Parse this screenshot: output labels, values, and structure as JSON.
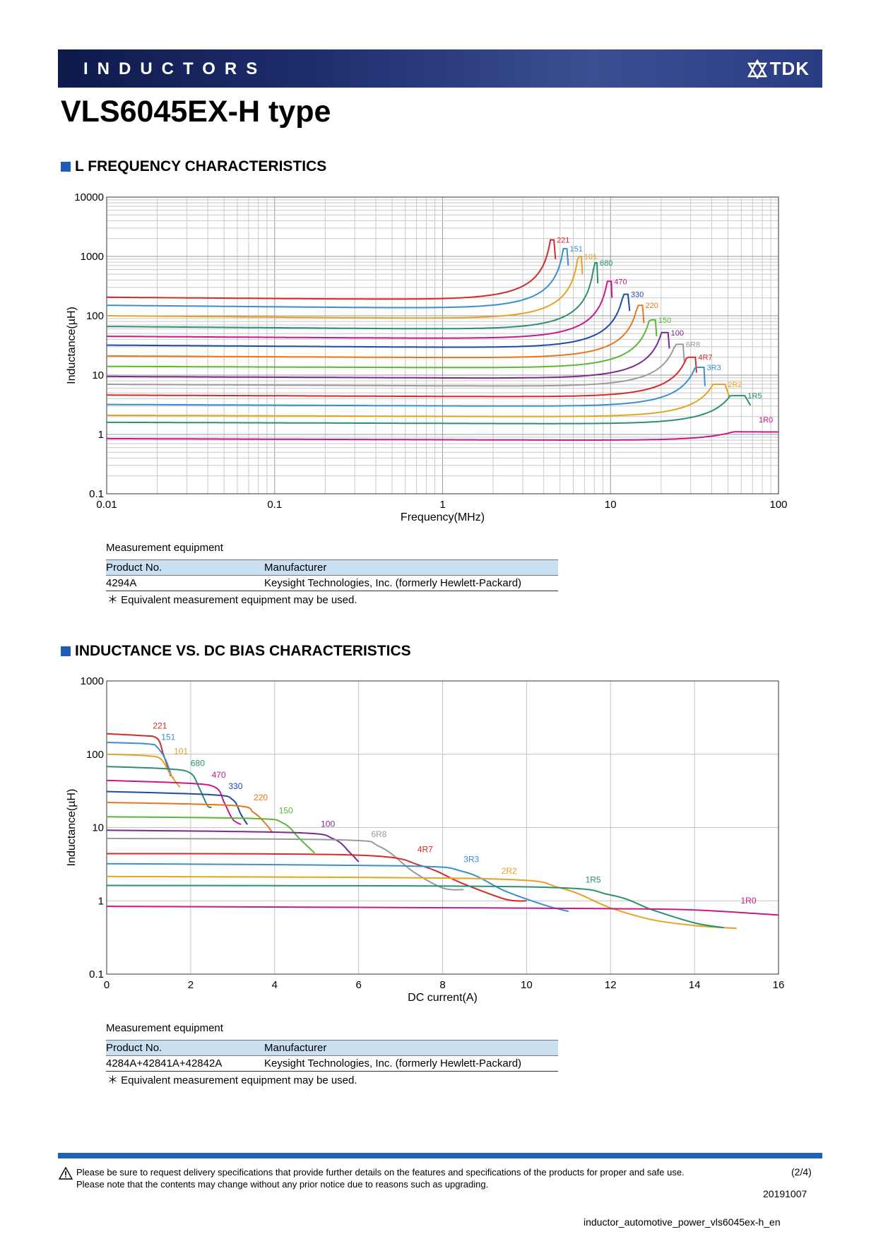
{
  "header": {
    "category": "INDUCTORS",
    "logo_text": "TDK"
  },
  "page_title": "VLS6045EX-H type",
  "section1": {
    "title": "L FREQUENCY CHARACTERISTICS",
    "equipment_label": "Measurement equipment",
    "table_headers": [
      "Product No.",
      "Manufacturer"
    ],
    "table_rows": [
      [
        "4294A",
        "Keysight Technologies, Inc. (formerly Hewlett-Packard)"
      ]
    ],
    "note": "＊ Equivalent measurement equipment may be used."
  },
  "section2": {
    "title": "INDUCTANCE VS. DC BIAS CHARACTERISTICS",
    "equipment_label": "Measurement equipment",
    "table_headers": [
      "Product No.",
      "Manufacturer"
    ],
    "table_rows": [
      [
        "4284A+42841A+42842A",
        "Keysight Technologies, Inc. (formerly Hewlett-Packard)"
      ]
    ],
    "note": "＊ Equivalent measurement equipment may be used."
  },
  "footer": {
    "line1": "Please be sure to request delivery specifications that provide further details on the features and specifications of the products for proper and safe use.",
    "line2": "Please note that the contents may change without any prior notice due to reasons such as upgrading.",
    "page": "(2/4)",
    "date": "20191007",
    "filename": "inductor_automotive_power_vls6045ex-h_en"
  },
  "chart_data": [
    {
      "type": "line",
      "xscale": "log",
      "yscale": "log",
      "xlim": [
        0.01,
        100
      ],
      "ylim": [
        0.1,
        10000
      ],
      "xticks": [
        "0.01",
        "0.1",
        "1",
        "10",
        "100"
      ],
      "yticks": [
        "0.1",
        "1",
        "10",
        "100",
        "1000",
        "10000"
      ],
      "xlabel": "Frequency(MHz)",
      "ylabel": "Inductance(µH)",
      "grid": true,
      "series": [
        {
          "name": "221",
          "color": "#d42a2a",
          "L0": 205,
          "L1min": 180,
          "fpk": 4.6,
          "Lpk": 1900,
          "fend": 4.7,
          "Lend": 900
        },
        {
          "name": "151",
          "color": "#3a8fd0",
          "L0": 150,
          "L1min": 128,
          "fpk": 5.5,
          "Lpk": 1350,
          "fend": 5.6,
          "Lend": 700
        },
        {
          "name": "101",
          "color": "#e6a31e",
          "L0": 100,
          "L1min": 86,
          "fpk": 6.7,
          "Lpk": 1000,
          "fend": 6.8,
          "Lend": 500
        },
        {
          "name": "680",
          "color": "#2a9070",
          "L0": 66,
          "L1min": 57,
          "fpk": 8.3,
          "Lpk": 780,
          "fend": 8.4,
          "Lend": 350
        },
        {
          "name": "470",
          "color": "#c8188a",
          "L0": 45,
          "L1min": 40,
          "fpk": 10.1,
          "Lpk": 380,
          "fend": 10.2,
          "Lend": 200
        },
        {
          "name": "330",
          "color": "#1f4aa8",
          "L0": 32,
          "L1min": 28,
          "fpk": 12.7,
          "Lpk": 230,
          "fend": 13,
          "Lend": 120
        },
        {
          "name": "220",
          "color": "#e8761c",
          "L0": 21,
          "L1min": 19,
          "fpk": 15.5,
          "Lpk": 150,
          "fend": 15.8,
          "Lend": 75
        },
        {
          "name": "150",
          "color": "#5ab832",
          "L0": 14,
          "L1min": 13,
          "fpk": 18.5,
          "Lpk": 85,
          "fend": 18.8,
          "Lend": 45
        },
        {
          "name": "100",
          "color": "#7b2b8f",
          "L0": 9.5,
          "L1min": 8.6,
          "fpk": 22,
          "Lpk": 52,
          "fend": 22.4,
          "Lend": 28
        },
        {
          "name": "6R8",
          "color": "#9a9a9a",
          "L0": 7,
          "L1min": 6.3,
          "fpk": 27,
          "Lpk": 33,
          "fend": 27.5,
          "Lend": 17
        },
        {
          "name": "4R7",
          "color": "#d42a2a",
          "L0": 4.6,
          "L1min": 4.2,
          "fpk": 32,
          "Lpk": 20,
          "fend": 32.5,
          "Lend": 11
        },
        {
          "name": "3R3",
          "color": "#3a8fd0",
          "L0": 3.2,
          "L1min": 2.9,
          "fpk": 36,
          "Lpk": 13.5,
          "fend": 36.5,
          "Lend": 6.5
        },
        {
          "name": "2R2",
          "color": "#e6a31e",
          "L0": 2.1,
          "L1min": 1.95,
          "fpk": 48,
          "Lpk": 7,
          "fend": 51,
          "Lend": 4.3
        },
        {
          "name": "1R5",
          "color": "#2a9070",
          "L0": 1.6,
          "L1min": 1.48,
          "fpk": 63,
          "Lpk": 4.5,
          "fend": 68,
          "Lend": 3.1
        },
        {
          "name": "1R0",
          "color": "#c8188a",
          "L0": 0.85,
          "L1min": 0.78,
          "fpk": 100,
          "Lpk": 1.1,
          "fend": 100,
          "Lend": 1.1
        }
      ]
    },
    {
      "type": "line",
      "xscale": "linear",
      "yscale": "log",
      "xlim": [
        0,
        16
      ],
      "ylim": [
        0.1,
        1000
      ],
      "xticks": [
        "0",
        "2",
        "4",
        "6",
        "8",
        "10",
        "12",
        "14",
        "16"
      ],
      "yticks": [
        "0.1",
        "1",
        "10",
        "100",
        "1000"
      ],
      "xlabel": "DC current(A)",
      "ylabel": "Inductance(µH)",
      "grid": true,
      "series": [
        {
          "name": "221",
          "color": "#d42a2a",
          "points": [
            [
              0,
              190
            ],
            [
              0.8,
              180
            ],
            [
              1.2,
              165
            ],
            [
              1.35,
              100
            ],
            [
              1.5,
              55
            ],
            [
              1.52,
              50
            ]
          ]
        },
        {
          "name": "151",
          "color": "#3a8fd0",
          "points": [
            [
              0,
              145
            ],
            [
              1,
              138
            ],
            [
              1.2,
              125
            ],
            [
              1.4,
              85
            ],
            [
              1.55,
              50
            ],
            [
              1.6,
              48
            ]
          ]
        },
        {
          "name": "101",
          "color": "#e6a31e",
          "points": [
            [
              0,
              100
            ],
            [
              1,
              95
            ],
            [
              1.3,
              85
            ],
            [
              1.5,
              55
            ],
            [
              1.7,
              38
            ],
            [
              1.75,
              36
            ]
          ]
        },
        {
          "name": "680",
          "color": "#2a9070",
          "points": [
            [
              0,
              68
            ],
            [
              1.5,
              63
            ],
            [
              2,
              55
            ],
            [
              2.2,
              35
            ],
            [
              2.4,
              20
            ],
            [
              2.5,
              19
            ]
          ]
        },
        {
          "name": "470",
          "color": "#c8188a",
          "points": [
            [
              0,
              44
            ],
            [
              2,
              40
            ],
            [
              2.6,
              35
            ],
            [
              2.8,
              22
            ],
            [
              3,
              13
            ],
            [
              3.2,
              11
            ]
          ]
        },
        {
          "name": "330",
          "color": "#1f4aa8",
          "points": [
            [
              0,
              31
            ],
            [
              2.5,
              28
            ],
            [
              3,
              24
            ],
            [
              3.2,
              15
            ],
            [
              3.35,
              11
            ]
          ]
        },
        {
          "name": "220",
          "color": "#e8761c",
          "points": [
            [
              0,
              22
            ],
            [
              3,
              20
            ],
            [
              3.5,
              16
            ],
            [
              3.8,
              11
            ],
            [
              3.95,
              8.5
            ]
          ]
        },
        {
          "name": "150",
          "color": "#5ab832",
          "points": [
            [
              0,
              14
            ],
            [
              3.5,
              13.3
            ],
            [
              4.2,
              11.5
            ],
            [
              4.6,
              7
            ],
            [
              4.95,
              4.5
            ]
          ]
        },
        {
          "name": "100",
          "color": "#7b2b8f",
          "points": [
            [
              0,
              9.2
            ],
            [
              4.5,
              8.5
            ],
            [
              5.4,
              7
            ],
            [
              5.8,
              4.5
            ],
            [
              6,
              3.4
            ]
          ]
        },
        {
          "name": "6R8",
          "color": "#9a9a9a",
          "points": [
            [
              0,
              7.1
            ],
            [
              5.5,
              6.8
            ],
            [
              6.5,
              5.5
            ],
            [
              7.3,
              2.5
            ],
            [
              8,
              1.5
            ],
            [
              8.5,
              1.42
            ]
          ]
        },
        {
          "name": "4R7",
          "color": "#d42a2a",
          "points": [
            [
              0,
              4.4
            ],
            [
              6,
              4.2
            ],
            [
              7.5,
              3
            ],
            [
              8.5,
              1.7
            ],
            [
              9.5,
              1.05
            ],
            [
              10,
              1
            ]
          ]
        },
        {
          "name": "3R3",
          "color": "#3a8fd0",
          "points": [
            [
              0,
              3.2
            ],
            [
              7,
              3
            ],
            [
              8.5,
              2.5
            ],
            [
              9.5,
              1.35
            ],
            [
              10.5,
              0.85
            ],
            [
              11,
              0.72
            ]
          ]
        },
        {
          "name": "2R2",
          "color": "#e6a31e",
          "points": [
            [
              0,
              2.15
            ],
            [
              9,
              2
            ],
            [
              10.8,
              1.5
            ],
            [
              12,
              0.8
            ],
            [
              13,
              0.55
            ],
            [
              14,
              0.46
            ],
            [
              15,
              0.42
            ]
          ]
        },
        {
          "name": "1R5",
          "color": "#2a9070",
          "points": [
            [
              0,
              1.62
            ],
            [
              10,
              1.55
            ],
            [
              12,
              1.2
            ],
            [
              13,
              0.75
            ],
            [
              14,
              0.5
            ],
            [
              14.7,
              0.43
            ]
          ]
        },
        {
          "name": "1R0",
          "color": "#c8188a",
          "points": [
            [
              0,
              0.84
            ],
            [
              9,
              0.8
            ],
            [
              12,
              0.78
            ],
            [
              14,
              0.75
            ],
            [
              16,
              0.64
            ]
          ]
        }
      ]
    }
  ]
}
